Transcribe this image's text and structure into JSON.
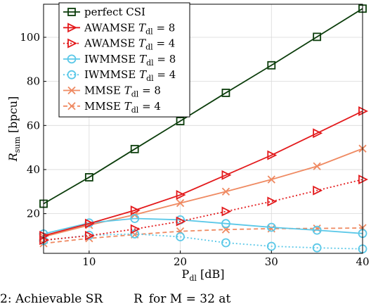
{
  "chart_data": {
    "type": "line",
    "xlabel": "P_dl [dB]",
    "ylabel": "R_sum [bpcu]",
    "xlim": [
      5,
      40
    ],
    "ylim": [
      2,
      115
    ],
    "xticks": [
      10,
      20,
      30,
      40
    ],
    "yticks": [
      20,
      40,
      60,
      80,
      100
    ],
    "grid": true,
    "legend_position": "top-left",
    "x": [
      5,
      10,
      15,
      20,
      25,
      30,
      35,
      40
    ],
    "series": [
      {
        "key": "perfect-csi",
        "name": "perfect CSI",
        "name_sub": "",
        "name_suffix": "",
        "color": "#0b3d0b",
        "dash": "solid",
        "marker": "square",
        "values": [
          24.5,
          36.5,
          49.3,
          62.0,
          74.8,
          87.3,
          100.2,
          113.0
        ]
      },
      {
        "key": "awamse-8",
        "name": "AWAMSE T",
        "name_sub": "dl",
        "name_suffix": " = 8",
        "color": "#e31a1c",
        "dash": "solid",
        "marker": "triangle-right",
        "values": [
          10.0,
          15.5,
          21.5,
          28.5,
          37.5,
          46.5,
          56.5,
          66.5
        ]
      },
      {
        "key": "awamse-4",
        "name": "AWAMSE T",
        "name_sub": "dl",
        "name_suffix": " = 4",
        "color": "#e31a1c",
        "dash": "dotted",
        "marker": "triangle-right",
        "values": [
          8.0,
          10.0,
          13.0,
          16.5,
          21.0,
          25.5,
          30.5,
          35.5
        ]
      },
      {
        "key": "iwmmse-8",
        "name": "IWMMSE T",
        "name_sub": "dl",
        "name_suffix": " = 8",
        "color": "#5bc8e8",
        "dash": "solid",
        "marker": "circle",
        "values": [
          10.8,
          15.8,
          17.8,
          17.2,
          15.5,
          13.8,
          12.5,
          11.0
        ]
      },
      {
        "key": "iwmmse-4",
        "name": "IWMMSE T",
        "name_sub": "dl",
        "name_suffix": " = 4",
        "color": "#5bc8e8",
        "dash": "dotted",
        "marker": "circle",
        "values": [
          7.8,
          10.2,
          10.8,
          9.5,
          6.8,
          5.2,
          4.5,
          4.0
        ]
      },
      {
        "key": "mmse-8",
        "name": "MMSE T",
        "name_sub": "dl",
        "name_suffix": " = 8",
        "color": "#ef8a62",
        "dash": "solid",
        "marker": "cross",
        "values": [
          9.5,
          14.8,
          19.5,
          24.8,
          30.0,
          35.5,
          41.5,
          49.5
        ]
      },
      {
        "key": "mmse-4",
        "name": "MMSE T",
        "name_sub": "dl",
        "name_suffix": " = 4",
        "color": "#ef8a62",
        "dash": "dashed",
        "marker": "cross",
        "values": [
          6.5,
          8.8,
          10.5,
          12.0,
          12.8,
          13.2,
          13.3,
          13.5
        ]
      }
    ]
  },
  "caption": "2: Achievable SR          R  for M = 32 at"
}
